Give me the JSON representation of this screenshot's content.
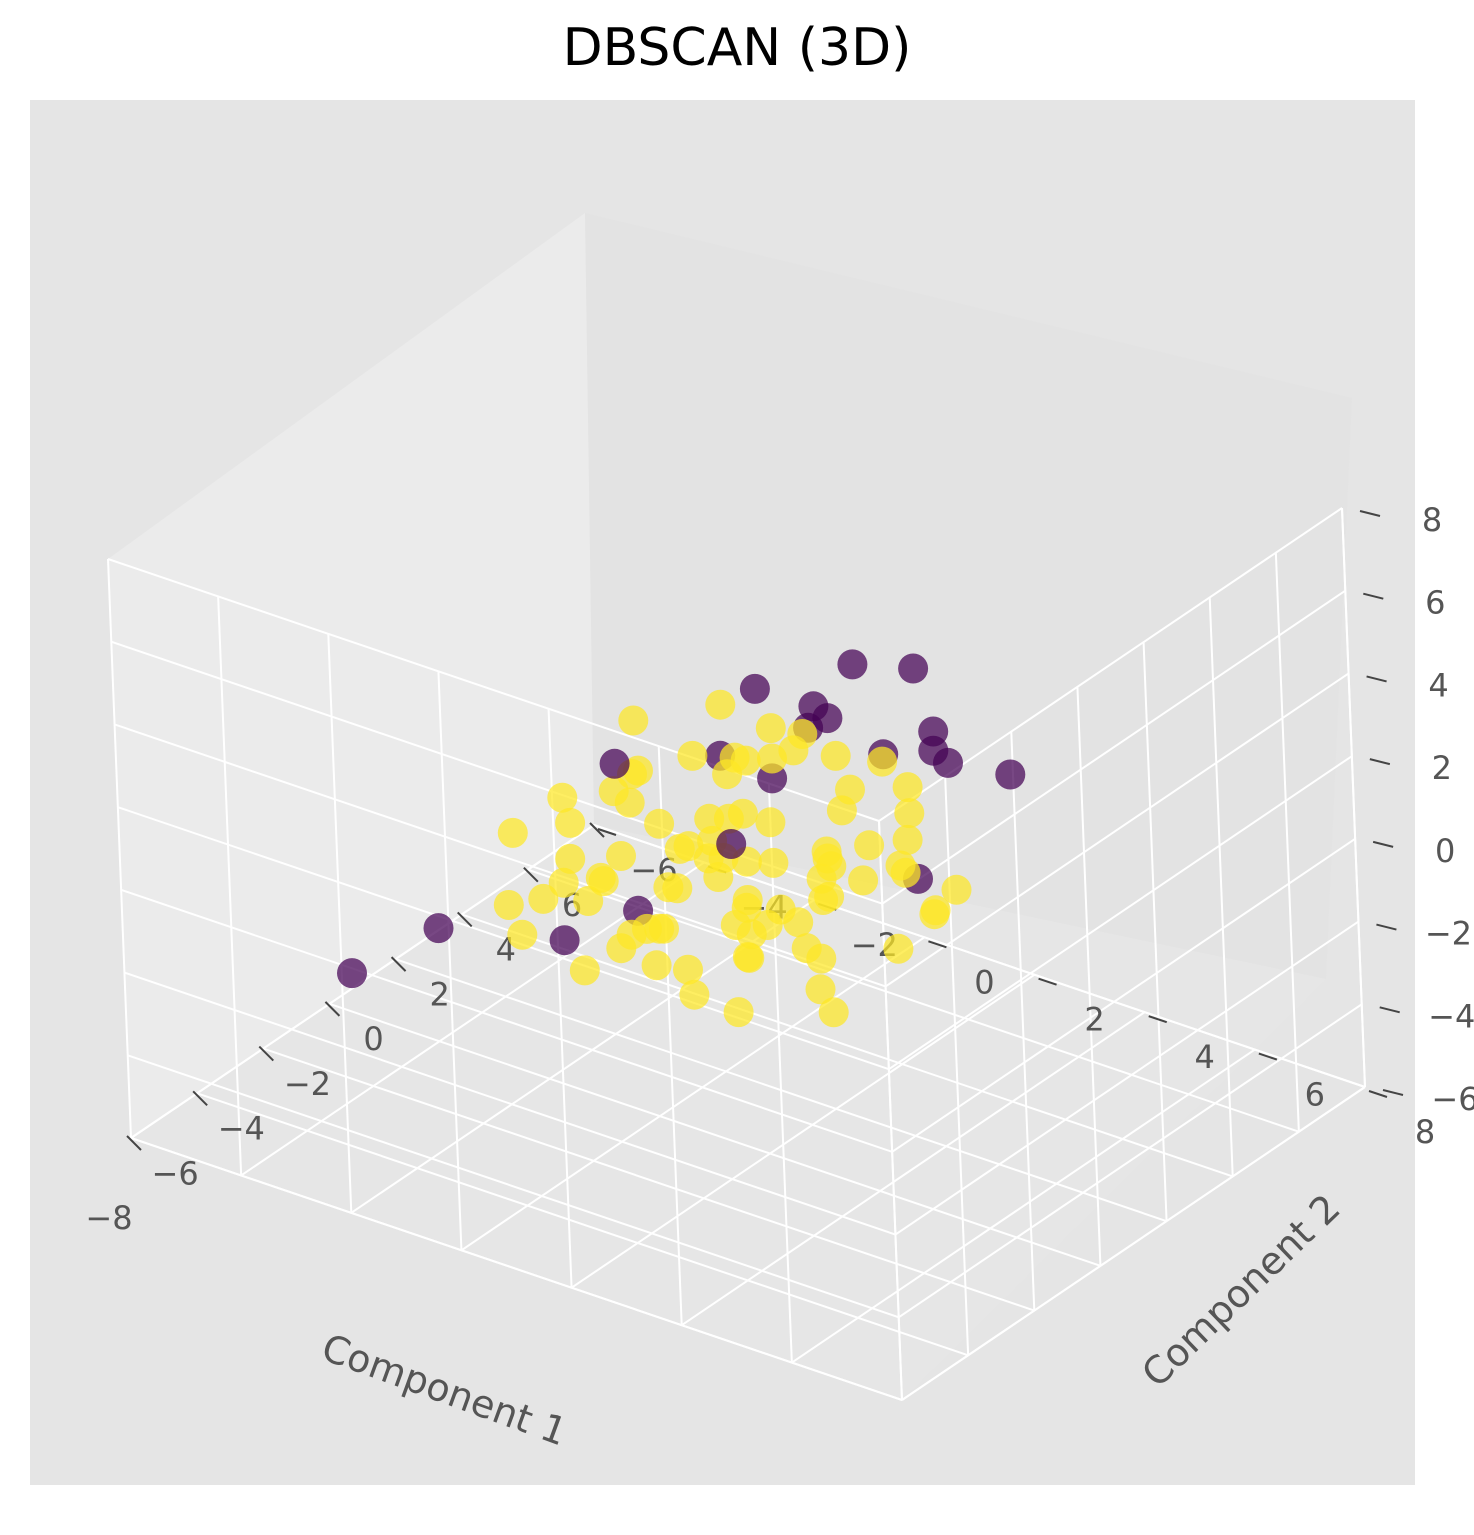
{
  "chart_data": {
    "type": "scatter",
    "title": "DBSCAN (3D)",
    "xlabel": "Component 1",
    "ylabel": "Component 2",
    "zlabel": "",
    "xlim": [
      -8,
      6
    ],
    "ylim": [
      -6,
      8
    ],
    "zlim": [
      -6,
      8
    ],
    "x_ticks": [
      "−8",
      "−6",
      "−4",
      "−2",
      "0",
      "2",
      "4",
      "6"
    ],
    "y_ticks": [
      "−6",
      "−4",
      "−2",
      "0",
      "2",
      "4",
      "6",
      "8"
    ],
    "z_ticks": [
      "−6",
      "−4",
      "−2",
      "0",
      "2",
      "4",
      "6",
      "8"
    ],
    "grid": true,
    "colors": {
      "cluster": "#fde725",
      "noise": "#440154",
      "pane": "#e5e5e5",
      "grid": "#ffffff"
    },
    "series": [
      {
        "cluster": 0,
        "points": [
          [
            -3.3,
            1.3,
            0.8
          ],
          [
            -2.1,
            1.6,
            -0.6
          ],
          [
            0.5,
            -0.2,
            -1.2
          ],
          [
            1.6,
            0.9,
            -1.8
          ],
          [
            -0.6,
            -1.4,
            -1.1
          ],
          [
            0.2,
            1.9,
            -0.1
          ],
          [
            -1.5,
            -0.7,
            -2.2
          ],
          [
            2.4,
            -0.5,
            -1.5
          ],
          [
            -0.9,
            2.4,
            -1.7
          ],
          [
            1.1,
            -2.2,
            -0.4
          ],
          [
            -2.3,
            -1.8,
            -1.4
          ],
          [
            3.2,
            0.8,
            -1.9
          ],
          [
            -0.1,
            0.3,
            0.3
          ],
          [
            0.9,
            2.7,
            -2.3
          ],
          [
            -1.8,
            0.6,
            -2.9
          ],
          [
            2.2,
            -1.9,
            -2.6
          ],
          [
            -3.1,
            0.1,
            -1.3
          ],
          [
            1.4,
            0.2,
            0.9
          ],
          [
            -0.4,
            -2.6,
            -2.4
          ],
          [
            0.6,
            1.2,
            -2.8
          ],
          [
            3.8,
            -0.9,
            -0.7
          ],
          [
            -2.7,
            2.2,
            -0.8
          ],
          [
            -1.2,
            -0.3,
            0.5
          ],
          [
            2.9,
            1.7,
            -1.2
          ],
          [
            0.1,
            -1.1,
            -3.1
          ],
          [
            -1.9,
            1.1,
            1.1
          ],
          [
            1.9,
            -0.8,
            0.2
          ],
          [
            -0.7,
            3.1,
            0.4
          ],
          [
            0.3,
            -3.0,
            -0.9
          ],
          [
            -2.9,
            -0.9,
            0.3
          ],
          [
            2.6,
            0.4,
            -3.0
          ],
          [
            -0.2,
            1.0,
            -1.9
          ],
          [
            1.3,
            -1.5,
            -2.0
          ],
          [
            -1.4,
            2.9,
            -2.5
          ],
          [
            0.8,
            0.0,
            -0.2
          ],
          [
            4.3,
            -0.2,
            -1.6
          ],
          [
            -2.4,
            0.3,
            -2.0
          ],
          [
            1.7,
            2.3,
            -0.9
          ],
          [
            -0.8,
            -0.9,
            1.3
          ],
          [
            0.0,
            1.8,
            -3.2
          ],
          [
            3.5,
            -1.6,
            -1.1
          ],
          [
            -1.1,
            -2.0,
            -0.3
          ],
          [
            2.0,
            1.0,
            1.0
          ],
          [
            -3.4,
            -0.4,
            -1.9
          ],
          [
            0.4,
            -1.7,
            1.5
          ],
          [
            -0.5,
            0.8,
            -2.6
          ],
          [
            1.2,
            3.2,
            -1.4
          ],
          [
            -2.0,
            -2.4,
            -2.7
          ],
          [
            2.8,
            -0.1,
            0.6
          ],
          [
            -1.6,
            1.5,
            -0.5
          ],
          [
            0.7,
            -0.6,
            -1.5
          ],
          [
            3.0,
            2.5,
            -2.1
          ],
          [
            -0.3,
            -0.2,
            1.7
          ],
          [
            1.5,
            -2.8,
            -1.3
          ],
          [
            -2.6,
            1.9,
            -2.3
          ],
          [
            0.2,
            2.2,
            1.2
          ],
          [
            4.0,
            0.6,
            -0.4
          ],
          [
            -1.0,
            0.0,
            -3.0
          ],
          [
            2.3,
            -1.2,
            -0.6
          ],
          [
            -0.6,
            1.4,
            0.0
          ],
          [
            1.0,
            0.5,
            -2.4
          ],
          [
            -3.6,
            0.9,
            -0.2
          ],
          [
            0.9,
            -0.4,
            2.2
          ],
          [
            -1.3,
            -1.6,
            -1.9
          ],
          [
            2.5,
            2.0,
            -0.2
          ],
          [
            0.3,
            -2.3,
            -2.6
          ],
          [
            -2.2,
            -0.2,
            1.6
          ],
          [
            3.6,
            1.2,
            -2.6
          ],
          [
            -0.9,
            2.0,
            -1.0
          ],
          [
            1.8,
            -0.6,
            -3.1
          ],
          [
            -0.1,
            0.6,
            -0.6
          ],
          [
            5.2,
            0.3,
            -1.8
          ],
          [
            -4.2,
            1.5,
            0.4
          ],
          [
            -3.8,
            -1.5,
            -0.6
          ],
          [
            4.6,
            -1.8,
            -1.0
          ],
          [
            0.6,
            3.6,
            -0.8
          ],
          [
            -0.4,
            -3.5,
            -1.6
          ],
          [
            1.1,
            1.4,
            -1.0
          ],
          [
            -1.7,
            -1.1,
            -0.9
          ],
          [
            2.1,
            0.7,
            -1.5
          ],
          [
            -0.2,
            -0.8,
            -1.8
          ],
          [
            0.5,
            1.6,
            -1.4
          ],
          [
            1.4,
            -1.0,
            -1.1
          ],
          [
            -1.0,
            1.2,
            -1.6
          ],
          [
            0.0,
            0.0,
            -1.3
          ]
        ]
      },
      {
        "cluster": -1,
        "points": [
          [
            -3.5,
            3.0,
            6.5
          ],
          [
            -2.3,
            3.2,
            5.0
          ],
          [
            -2.2,
            1.5,
            3.5
          ],
          [
            -1.0,
            2.5,
            4.5
          ],
          [
            1.5,
            2.8,
            4.2
          ],
          [
            0.5,
            4.0,
            3.0
          ],
          [
            -3.0,
            4.5,
            7.5
          ],
          [
            -1.5,
            2.0,
            2.8
          ],
          [
            -4.0,
            1.0,
            0.5
          ],
          [
            2.5,
            2.5,
            2.0
          ],
          [
            2.0,
            4.2,
            2.0
          ],
          [
            1.2,
            3.3,
            2.6
          ],
          [
            -0.6,
            2.5,
            4.0
          ],
          [
            -1.8,
            4.8,
            1.8
          ],
          [
            3.3,
            -1.8,
            -3.1
          ],
          [
            2.2,
            -3.2,
            -1.2
          ],
          [
            -3.5,
            -3.0,
            -2.0
          ],
          [
            -4.5,
            -4.0,
            -3.0
          ],
          [
            -3.8,
            -0.5,
            -1.0
          ],
          [
            1.8,
            2.0,
            1.6
          ]
        ]
      }
    ]
  }
}
